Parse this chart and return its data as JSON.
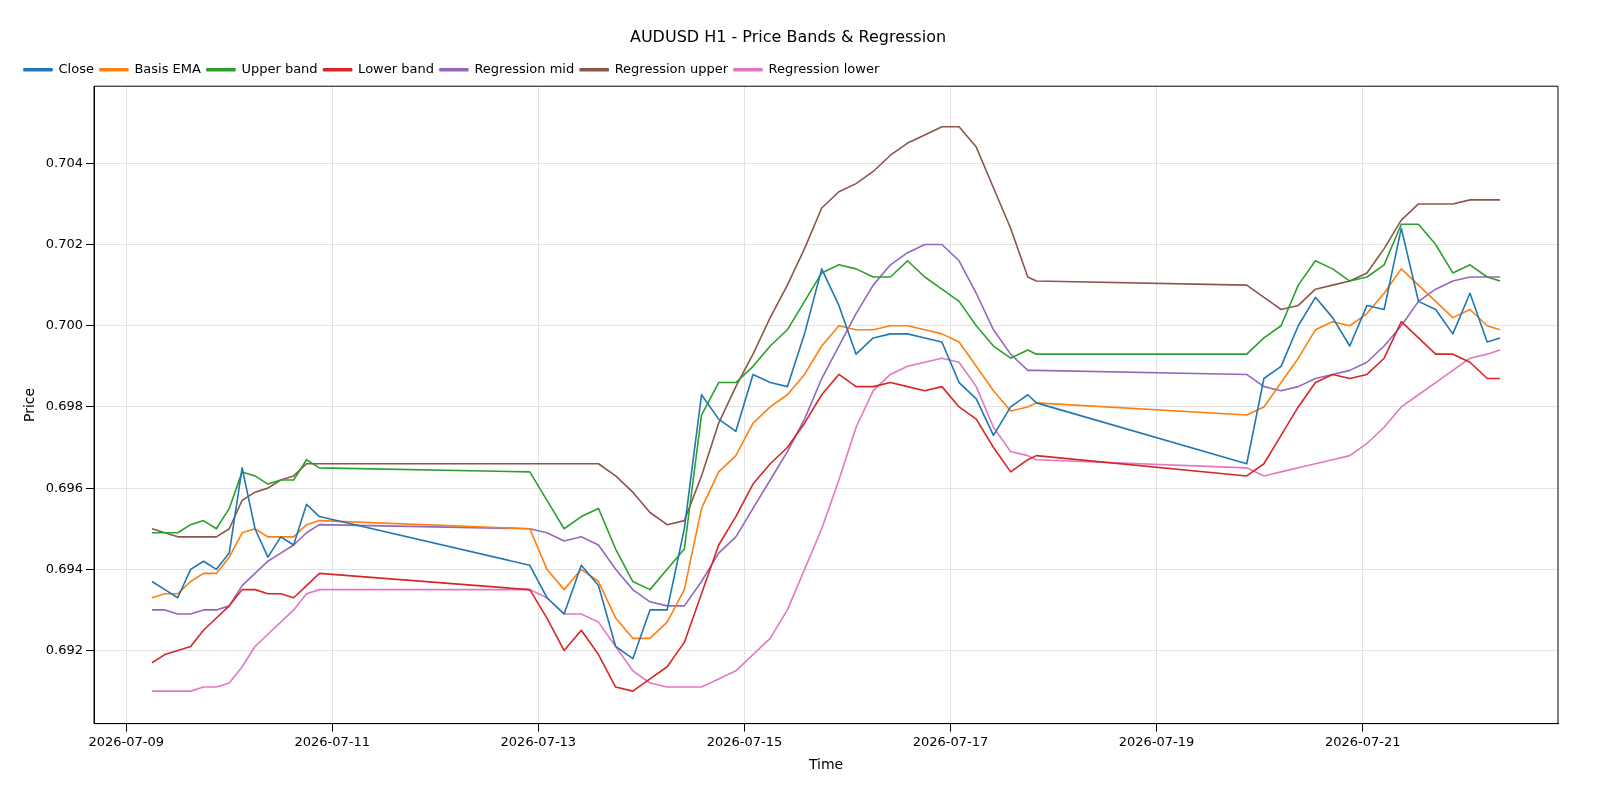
{
  "chart_data": {
    "type": "line",
    "title": "AUDUSD H1 - Price Bands & Regression",
    "xlabel": "Time",
    "ylabel": "Price",
    "grid": true,
    "legend": "top left",
    "xlim": [
      "2026-07-08T16:30",
      "2026-07-22T21:30"
    ],
    "xticks": [
      "2026-07-09",
      "2026-07-11",
      "2026-07-13",
      "2026-07-15",
      "2026-07-17",
      "2026-07-19",
      "2026-07-21"
    ],
    "ylim": [
      0.6902,
      0.7059
    ],
    "yticks": [
      0.692,
      0.694,
      0.696,
      0.698,
      {
        "value": 0.7,
        "label": "0.700"
      },
      0.702,
      0.704
    ],
    "x": [
      "2026-07-09T06:00",
      "2026-07-09T09:00",
      "2026-07-09T12:00",
      "2026-07-09T15:00",
      "2026-07-09T18:00",
      "2026-07-09T21:00",
      "2026-07-10T00:00",
      "2026-07-10T03:00",
      "2026-07-10T06:00",
      "2026-07-10T09:00",
      "2026-07-10T12:00",
      "2026-07-10T15:00",
      "2026-07-10T18:00",
      "2026-07-10T21:00",
      "2026-07-12T22:00",
      "2026-07-13T02:00",
      "2026-07-13T06:00",
      "2026-07-13T10:00",
      "2026-07-13T14:00",
      "2026-07-13T18:00",
      "2026-07-13T22:00",
      "2026-07-14T02:00",
      "2026-07-14T06:00",
      "2026-07-14T10:00",
      "2026-07-14T14:00",
      "2026-07-14T18:00",
      "2026-07-14T22:00",
      "2026-07-15T02:00",
      "2026-07-15T06:00",
      "2026-07-15T10:00",
      "2026-07-15T14:00",
      "2026-07-15T18:00",
      "2026-07-15T22:00",
      "2026-07-16T02:00",
      "2026-07-16T06:00",
      "2026-07-16T10:00",
      "2026-07-16T14:00",
      "2026-07-16T18:00",
      "2026-07-16T22:00",
      "2026-07-17T02:00",
      "2026-07-17T06:00",
      "2026-07-17T10:00",
      "2026-07-17T14:00",
      "2026-07-17T18:00",
      "2026-07-17T20:00",
      "2026-07-19T21:00",
      "2026-07-20T01:00",
      "2026-07-20T05:00",
      "2026-07-20T09:00",
      "2026-07-20T13:00",
      "2026-07-20T17:00",
      "2026-07-20T21:00",
      "2026-07-21T01:00",
      "2026-07-21T05:00",
      "2026-07-21T09:00",
      "2026-07-21T13:00",
      "2026-07-21T17:00",
      "2026-07-21T21:00",
      "2026-07-22T01:00",
      "2026-07-22T05:00",
      "2026-07-22T08:00"
    ],
    "series": [
      {
        "name": "Close",
        "color": "#1f77b4",
        "values": [
          0.6937,
          0.6935,
          0.6933,
          0.694,
          0.6942,
          0.694,
          0.6944,
          0.6965,
          0.695,
          0.6943,
          0.6948,
          0.6946,
          0.6956,
          0.6953,
          0.6941,
          0.6933,
          0.6929,
          0.6941,
          0.6936,
          0.6921,
          0.6918,
          0.693,
          0.693,
          0.695,
          0.6983,
          0.6977,
          0.6974,
          0.6988,
          0.6986,
          0.6985,
          0.6998,
          0.7014,
          0.7005,
          0.6993,
          0.6997,
          0.6998,
          0.6998,
          0.6997,
          0.6996,
          0.6986,
          0.6982,
          0.6973,
          0.698,
          0.6983,
          0.6981,
          0.6966,
          0.6987,
          0.699,
          0.7,
          0.7007,
          0.7002,
          0.6995,
          0.7005,
          0.7004,
          0.7024,
          0.7006,
          0.7004,
          0.6998,
          0.7008,
          0.6996,
          0.6997
        ]
      },
      {
        "name": "Basis EMA",
        "color": "#ff7f0e",
        "values": [
          0.6933,
          0.6934,
          0.6934,
          0.6937,
          0.6939,
          0.6939,
          0.6943,
          0.6949,
          0.695,
          0.6948,
          0.6948,
          0.6948,
          0.6951,
          0.6952,
          0.695,
          0.694,
          0.6935,
          0.694,
          0.6937,
          0.6928,
          0.6923,
          0.6923,
          0.6927,
          0.6935,
          0.6955,
          0.6964,
          0.6968,
          0.6976,
          0.698,
          0.6983,
          0.6988,
          0.6995,
          0.7,
          0.6999,
          0.6999,
          0.7,
          0.7,
          0.6999,
          0.6998,
          0.6996,
          0.699,
          0.6984,
          0.6979,
          0.698,
          0.6981,
          0.6978,
          0.698,
          0.6986,
          0.6992,
          0.6999,
          0.7001,
          0.7,
          0.7003,
          0.7008,
          0.7014,
          0.701,
          0.7006,
          0.7002,
          0.7004,
          0.7,
          0.6999
        ]
      },
      {
        "name": "Upper band",
        "color": "#2ca02c",
        "values": [
          0.6949,
          0.6949,
          0.6949,
          0.6951,
          0.6952,
          0.695,
          0.6955,
          0.6964,
          0.6963,
          0.6961,
          0.6962,
          0.6962,
          0.6967,
          0.6965,
          0.6964,
          0.6957,
          0.695,
          0.6953,
          0.6955,
          0.6945,
          0.6937,
          0.6935,
          0.694,
          0.6945,
          0.6978,
          0.6986,
          0.6986,
          0.699,
          0.6995,
          0.6999,
          0.7006,
          0.7013,
          0.7015,
          0.7014,
          0.7012,
          0.7012,
          0.7016,
          0.7012,
          0.7009,
          0.7006,
          0.7,
          0.6995,
          0.6992,
          0.6994,
          0.6993,
          0.6993,
          0.6997,
          0.7,
          0.701,
          0.7016,
          0.7014,
          0.7011,
          0.7012,
          0.7015,
          0.7025,
          0.7025,
          0.702,
          0.7013,
          0.7015,
          0.7012,
          0.7011
        ]
      },
      {
        "name": "Lower band",
        "color": "#d62728",
        "values": [
          0.6917,
          0.6919,
          0.692,
          0.6921,
          0.6925,
          0.6928,
          0.6931,
          0.6935,
          0.6935,
          0.6934,
          0.6934,
          0.6933,
          0.6936,
          0.6939,
          0.6935,
          0.6928,
          0.692,
          0.6925,
          0.6919,
          0.6911,
          0.691,
          0.6913,
          0.6916,
          0.6922,
          0.6934,
          0.6946,
          0.6953,
          0.6961,
          0.6966,
          0.697,
          0.6976,
          0.6983,
          0.6988,
          0.6985,
          0.6985,
          0.6986,
          0.6985,
          0.6984,
          0.6985,
          0.698,
          0.6977,
          0.697,
          0.6964,
          0.6967,
          0.6968,
          0.6963,
          0.6966,
          0.6973,
          0.698,
          0.6986,
          0.6988,
          0.6987,
          0.6988,
          0.6992,
          0.7001,
          0.6997,
          0.6993,
          0.6993,
          0.6991,
          0.6987,
          0.6987
        ]
      },
      {
        "name": "Regression mid",
        "color": "#9467bd",
        "values": [
          0.693,
          0.693,
          0.6929,
          0.6929,
          0.693,
          0.693,
          0.6931,
          0.6936,
          0.6939,
          0.6942,
          0.6944,
          0.6946,
          0.6949,
          0.6951,
          0.695,
          0.6949,
          0.6947,
          0.6948,
          0.6946,
          0.694,
          0.6935,
          0.6932,
          0.6931,
          0.6931,
          0.6937,
          0.6944,
          0.6948,
          0.6955,
          0.6962,
          0.6969,
          0.6977,
          0.6987,
          0.6995,
          0.7003,
          0.701,
          0.7015,
          0.7018,
          0.702,
          0.702,
          0.7016,
          0.7008,
          0.6999,
          0.6993,
          0.6989,
          0.6989,
          0.6988,
          0.6985,
          0.6984,
          0.6985,
          0.6987,
          0.6988,
          0.6989,
          0.6991,
          0.6995,
          0.7,
          0.7006,
          0.7009,
          0.7011,
          0.7012,
          0.7012,
          0.7012
        ]
      },
      {
        "name": "Regression upper",
        "color": "#8c564b",
        "values": [
          0.695,
          0.6949,
          0.6948,
          0.6948,
          0.6948,
          0.6948,
          0.695,
          0.6957,
          0.6959,
          0.696,
          0.6962,
          0.6963,
          0.6966,
          0.6966,
          0.6966,
          0.6966,
          0.6966,
          0.6966,
          0.6966,
          0.6963,
          0.6959,
          0.6954,
          0.6951,
          0.6952,
          0.6963,
          0.6976,
          0.6985,
          0.6993,
          0.7002,
          0.701,
          0.7019,
          0.7029,
          0.7033,
          0.7035,
          0.7038,
          0.7042,
          0.7045,
          0.7047,
          0.7049,
          0.7049,
          0.7044,
          0.7034,
          0.7024,
          0.7012,
          0.7011,
          0.701,
          0.7007,
          0.7004,
          0.7005,
          0.7009,
          0.701,
          0.7011,
          0.7013,
          0.7019,
          0.7026,
          0.703,
          0.703,
          0.703,
          0.7031,
          0.7031,
          0.7031
        ]
      },
      {
        "name": "Regression lower",
        "color": "#e377c2",
        "values": [
          0.691,
          0.691,
          0.691,
          0.691,
          0.6911,
          0.6911,
          0.6912,
          0.6916,
          0.6921,
          0.6924,
          0.6927,
          0.693,
          0.6934,
          0.6935,
          0.6935,
          0.6933,
          0.6929,
          0.6929,
          0.6927,
          0.6921,
          0.6915,
          0.6912,
          0.6911,
          0.6911,
          0.6911,
          0.6913,
          0.6915,
          0.6919,
          0.6923,
          0.693,
          0.694,
          0.695,
          0.6962,
          0.6975,
          0.6984,
          0.6988,
          0.699,
          0.6991,
          0.6992,
          0.6991,
          0.6985,
          0.6975,
          0.6969,
          0.6968,
          0.6967,
          0.6965,
          0.6963,
          0.6964,
          0.6965,
          0.6966,
          0.6967,
          0.6968,
          0.6971,
          0.6975,
          0.698,
          0.6983,
          0.6986,
          0.6989,
          0.6992,
          0.6993,
          0.6994
        ]
      }
    ]
  }
}
